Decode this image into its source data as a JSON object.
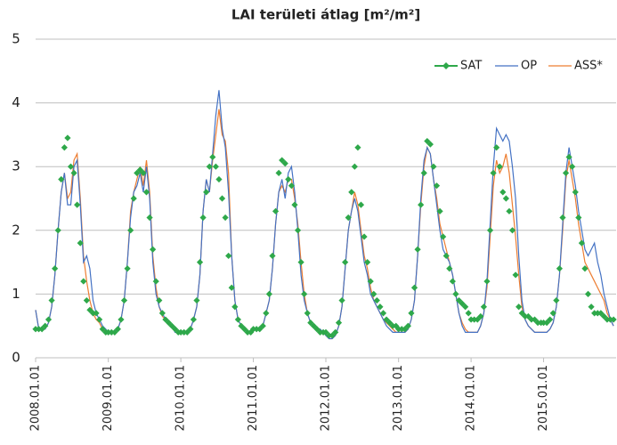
{
  "chart_data": {
    "type": "line",
    "title": "LAI területi átlag [m²/m²]",
    "x": [
      "2008.01.01",
      "2008.01.17",
      "2008.02.02",
      "2008.02.18",
      "2008.03.06",
      "2008.03.22",
      "2008.04.07",
      "2008.04.23",
      "2008.05.09",
      "2008.05.25",
      "2008.06.10",
      "2008.06.26",
      "2008.07.12",
      "2008.07.28",
      "2008.08.13",
      "2008.08.29",
      "2008.09.14",
      "2008.09.30",
      "2008.10.16",
      "2008.11.01",
      "2008.11.17",
      "2008.12.03",
      "2008.12.19",
      "2009.01.01",
      "2009.01.17",
      "2009.02.02",
      "2009.02.18",
      "2009.03.06",
      "2009.03.22",
      "2009.04.07",
      "2009.04.23",
      "2009.05.09",
      "2009.05.25",
      "2009.06.10",
      "2009.06.26",
      "2009.07.12",
      "2009.07.28",
      "2009.08.13",
      "2009.08.29",
      "2009.09.14",
      "2009.09.30",
      "2009.10.16",
      "2009.11.01",
      "2009.11.17",
      "2009.12.03",
      "2009.12.19",
      "2010.01.01",
      "2010.01.17",
      "2010.02.02",
      "2010.02.18",
      "2010.03.06",
      "2010.03.22",
      "2010.04.07",
      "2010.04.23",
      "2010.05.09",
      "2010.05.25",
      "2010.06.10",
      "2010.06.26",
      "2010.07.12",
      "2010.07.28",
      "2010.08.13",
      "2010.08.29",
      "2010.09.14",
      "2010.09.30",
      "2010.10.16",
      "2010.11.01",
      "2010.11.17",
      "2010.12.03",
      "2010.12.19",
      "2011.01.01",
      "2011.01.17",
      "2011.02.02",
      "2011.02.18",
      "2011.03.06",
      "2011.03.22",
      "2011.04.07",
      "2011.04.23",
      "2011.05.09",
      "2011.05.25",
      "2011.06.10",
      "2011.06.26",
      "2011.07.12",
      "2011.07.28",
      "2011.08.13",
      "2011.08.29",
      "2011.09.14",
      "2011.09.30",
      "2011.10.16",
      "2011.11.01",
      "2011.11.17",
      "2011.12.03",
      "2011.12.19",
      "2012.01.01",
      "2012.01.17",
      "2012.02.02",
      "2012.02.18",
      "2012.03.06",
      "2012.03.22",
      "2012.04.07",
      "2012.04.23",
      "2012.05.09",
      "2012.05.25",
      "2012.06.10",
      "2012.06.26",
      "2012.07.12",
      "2012.07.28",
      "2012.08.13",
      "2012.08.29",
      "2012.09.14",
      "2012.09.30",
      "2012.10.16",
      "2012.11.01",
      "2012.11.17",
      "2012.12.03",
      "2012.12.19",
      "2013.01.01",
      "2013.01.17",
      "2013.02.02",
      "2013.02.18",
      "2013.03.06",
      "2013.03.22",
      "2013.04.07",
      "2013.04.23",
      "2013.05.09",
      "2013.05.25",
      "2013.06.10",
      "2013.06.26",
      "2013.07.12",
      "2013.07.28",
      "2013.08.13",
      "2013.08.29",
      "2013.09.14",
      "2013.09.30",
      "2013.10.16",
      "2013.11.01",
      "2013.11.17",
      "2013.12.03",
      "2013.12.19",
      "2014.01.01",
      "2014.01.17",
      "2014.02.02",
      "2014.02.18",
      "2014.03.06",
      "2014.03.22",
      "2014.04.07",
      "2014.04.23",
      "2014.05.09",
      "2014.05.25",
      "2014.06.10",
      "2014.06.26",
      "2014.07.12",
      "2014.07.28",
      "2014.08.13",
      "2014.08.29",
      "2014.09.14",
      "2014.09.30",
      "2014.10.16",
      "2014.11.01",
      "2014.11.17",
      "2014.12.03",
      "2014.12.19",
      "2015.01.01",
      "2015.01.17",
      "2015.02.02",
      "2015.02.18",
      "2015.03.06",
      "2015.03.22",
      "2015.04.07",
      "2015.04.23",
      "2015.05.09",
      "2015.05.25",
      "2015.06.10",
      "2015.06.26",
      "2015.07.12",
      "2015.07.28",
      "2015.08.13",
      "2015.08.29",
      "2015.09.14",
      "2015.09.30",
      "2015.10.16",
      "2015.11.01",
      "2015.11.17",
      "2015.12.03",
      "2015.12.19"
    ],
    "series": [
      {
        "name": "SAT",
        "color": "#2ea84a",
        "marker": "diamond",
        "line": false,
        "values": [
          0.45,
          0.45,
          0.45,
          0.5,
          0.6,
          0.9,
          1.4,
          2.0,
          2.8,
          3.3,
          3.45,
          3.0,
          2.9,
          2.4,
          1.8,
          1.2,
          0.9,
          0.75,
          0.7,
          0.7,
          0.6,
          0.45,
          0.4,
          0.4,
          0.4,
          0.4,
          0.45,
          0.6,
          0.9,
          1.4,
          2.0,
          2.5,
          2.9,
          2.95,
          2.9,
          2.6,
          2.2,
          1.7,
          1.2,
          0.9,
          0.7,
          0.6,
          0.55,
          0.5,
          0.45,
          0.4,
          0.4,
          0.4,
          0.4,
          0.45,
          0.6,
          0.9,
          1.5,
          2.2,
          2.6,
          3.0,
          3.15,
          3.0,
          2.8,
          2.5,
          2.2,
          1.6,
          1.1,
          0.8,
          0.6,
          0.5,
          0.45,
          0.4,
          0.4,
          0.45,
          0.45,
          0.45,
          0.5,
          0.7,
          1.0,
          1.6,
          2.3,
          2.9,
          3.1,
          3.05,
          2.8,
          2.7,
          2.4,
          2.0,
          1.5,
          1.0,
          0.7,
          0.55,
          0.5,
          0.45,
          0.4,
          0.4,
          0.4,
          0.35,
          0.35,
          0.4,
          0.55,
          0.9,
          1.5,
          2.2,
          2.6,
          3.0,
          3.3,
          2.4,
          1.9,
          1.5,
          1.2,
          1.0,
          0.9,
          0.8,
          0.7,
          0.6,
          0.55,
          0.5,
          0.5,
          0.45,
          0.45,
          0.45,
          0.5,
          0.7,
          1.1,
          1.7,
          2.4,
          2.9,
          3.4,
          3.35,
          3.0,
          2.7,
          2.3,
          1.9,
          1.6,
          1.4,
          1.2,
          1.0,
          0.9,
          0.85,
          0.8,
          0.7,
          0.6,
          0.6,
          0.6,
          0.65,
          0.8,
          1.2,
          2.0,
          2.9,
          3.3,
          3.0,
          2.6,
          2.5,
          2.3,
          2.0,
          1.3,
          0.8,
          0.7,
          0.65,
          0.65,
          0.6,
          0.6,
          0.55,
          0.55,
          0.55,
          0.55,
          0.6,
          0.7,
          0.9,
          1.4,
          2.2,
          2.9,
          3.15,
          3.0,
          2.6,
          2.2,
          1.8,
          1.4,
          1.0,
          0.8,
          0.7,
          0.7,
          0.7,
          0.65,
          0.6,
          0.6,
          0.6
        ]
      },
      {
        "name": "OP",
        "color": "#4472c4",
        "values": [
          0.75,
          0.45,
          0.45,
          0.45,
          0.55,
          0.8,
          1.3,
          2.0,
          2.6,
          2.9,
          2.4,
          2.4,
          3.0,
          3.1,
          2.4,
          1.5,
          1.6,
          1.4,
          0.9,
          0.7,
          0.6,
          0.5,
          0.45,
          0.4,
          0.4,
          0.4,
          0.45,
          0.6,
          0.9,
          1.5,
          2.2,
          2.6,
          2.7,
          2.9,
          2.6,
          3.0,
          2.5,
          1.5,
          1.0,
          0.8,
          0.7,
          0.6,
          0.55,
          0.5,
          0.4,
          0.4,
          0.4,
          0.4,
          0.4,
          0.45,
          0.6,
          0.8,
          1.3,
          2.3,
          2.8,
          2.6,
          3.2,
          3.8,
          4.2,
          3.6,
          3.3,
          2.6,
          1.6,
          0.9,
          0.6,
          0.5,
          0.45,
          0.4,
          0.4,
          0.45,
          0.45,
          0.45,
          0.5,
          0.7,
          0.9,
          1.4,
          2.1,
          2.6,
          2.8,
          2.5,
          2.9,
          3.0,
          2.6,
          2.0,
          1.3,
          0.9,
          0.7,
          0.55,
          0.5,
          0.45,
          0.45,
          0.4,
          0.35,
          0.3,
          0.3,
          0.35,
          0.5,
          0.8,
          1.4,
          2.0,
          2.3,
          2.5,
          2.3,
          1.9,
          1.5,
          1.3,
          1.0,
          0.9,
          0.8,
          0.7,
          0.6,
          0.5,
          0.45,
          0.4,
          0.4,
          0.4,
          0.4,
          0.4,
          0.45,
          0.6,
          0.9,
          1.6,
          2.5,
          3.1,
          3.3,
          3.2,
          2.8,
          2.4,
          2.0,
          1.7,
          1.6,
          1.5,
          1.3,
          1.0,
          0.7,
          0.5,
          0.4,
          0.4,
          0.4,
          0.4,
          0.4,
          0.5,
          0.7,
          1.2,
          2.1,
          3.0,
          3.6,
          3.5,
          3.4,
          3.5,
          3.4,
          3.0,
          2.5,
          1.6,
          0.9,
          0.6,
          0.5,
          0.45,
          0.4,
          0.4,
          0.4,
          0.4,
          0.4,
          0.45,
          0.55,
          0.8,
          1.3,
          2.1,
          2.9,
          3.3,
          3.0,
          2.7,
          2.3,
          2.0,
          1.7,
          1.6,
          1.7,
          1.8,
          1.5,
          1.3,
          1.0,
          0.8,
          0.6,
          0.5
        ]
      },
      {
        "name": "ASS*",
        "color": "#ed7d31",
        "values": [
          0.75,
          0.45,
          0.45,
          0.45,
          0.55,
          0.8,
          1.3,
          2.0,
          2.6,
          2.9,
          2.5,
          2.6,
          3.1,
          3.2,
          2.5,
          1.6,
          1.2,
          0.9,
          0.7,
          0.6,
          0.55,
          0.45,
          0.4,
          0.4,
          0.4,
          0.4,
          0.45,
          0.6,
          0.9,
          1.5,
          2.3,
          2.6,
          2.8,
          3.0,
          2.7,
          3.1,
          2.6,
          1.6,
          1.1,
          0.8,
          0.65,
          0.6,
          0.55,
          0.5,
          0.45,
          0.4,
          0.4,
          0.4,
          0.4,
          0.45,
          0.6,
          0.8,
          1.3,
          2.3,
          2.8,
          2.6,
          3.1,
          3.5,
          3.9,
          3.5,
          3.4,
          2.9,
          1.6,
          0.9,
          0.6,
          0.5,
          0.45,
          0.4,
          0.4,
          0.45,
          0.45,
          0.45,
          0.5,
          0.7,
          0.9,
          1.4,
          2.1,
          2.6,
          2.7,
          2.6,
          2.8,
          2.8,
          2.5,
          2.1,
          1.5,
          1.0,
          0.7,
          0.55,
          0.5,
          0.45,
          0.4,
          0.4,
          0.35,
          0.3,
          0.3,
          0.35,
          0.5,
          0.8,
          1.4,
          2.0,
          2.3,
          2.6,
          2.4,
          2.0,
          1.6,
          1.4,
          1.1,
          0.9,
          0.8,
          0.7,
          0.6,
          0.55,
          0.5,
          0.45,
          0.4,
          0.4,
          0.4,
          0.4,
          0.45,
          0.6,
          0.9,
          1.6,
          2.4,
          3.0,
          3.3,
          3.2,
          2.8,
          2.5,
          2.1,
          1.9,
          1.7,
          1.5,
          1.3,
          1.0,
          0.7,
          0.55,
          0.45,
          0.4,
          0.4,
          0.4,
          0.4,
          0.5,
          0.7,
          1.1,
          1.9,
          2.7,
          3.1,
          2.9,
          3.0,
          3.2,
          2.9,
          2.4,
          1.9,
          1.3,
          0.8,
          0.6,
          0.5,
          0.45,
          0.4,
          0.4,
          0.4,
          0.4,
          0.4,
          0.45,
          0.55,
          0.8,
          1.3,
          2.0,
          2.8,
          3.1,
          2.8,
          2.5,
          2.1,
          1.8,
          1.5,
          1.4,
          1.3,
          1.2,
          1.1,
          1.0,
          0.9,
          0.7,
          0.6,
          0.5
        ]
      }
    ],
    "xlim": [
      "2008.01.01",
      "2016.01.01"
    ],
    "xticks": [
      "2008.01.01",
      "2009.01.01",
      "2010.01.01",
      "2011.01.01",
      "2012.01.01",
      "2013.01.01",
      "2014.01.01",
      "2015.01.01"
    ],
    "ylim": [
      0,
      5
    ],
    "yticks": [
      0,
      1,
      2,
      3,
      4,
      5
    ],
    "grid": true,
    "legend": "upper right"
  }
}
